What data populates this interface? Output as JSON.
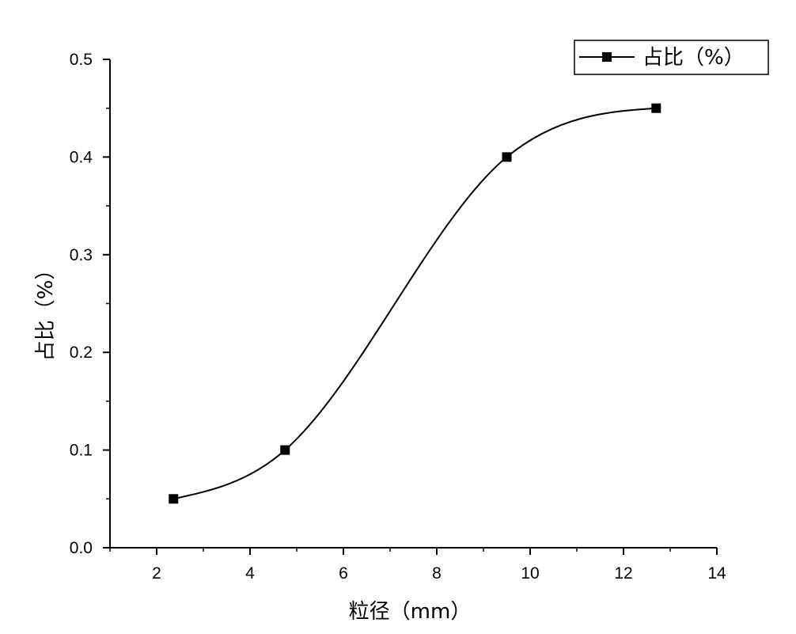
{
  "chart_data": {
    "type": "line",
    "xlabel": "粒径（mm）",
    "ylabel": "占比（%）",
    "xlim": [
      1,
      14
    ],
    "ylim": [
      0,
      0.5
    ],
    "x_ticks": [
      "2",
      "4",
      "6",
      "8",
      "10",
      "12",
      "14"
    ],
    "y_ticks": [
      "0.0",
      "0.1",
      "0.2",
      "0.3",
      "0.4",
      "0.5"
    ],
    "series": [
      {
        "name": "占比（%）",
        "marker": "square",
        "smooth": true,
        "color": "#000000",
        "x": [
          2.36,
          4.75,
          9.5,
          12.7
        ],
        "y": [
          0.05,
          0.1,
          0.4,
          0.45
        ]
      }
    ],
    "legend_position": "top-right",
    "grid": false
  }
}
